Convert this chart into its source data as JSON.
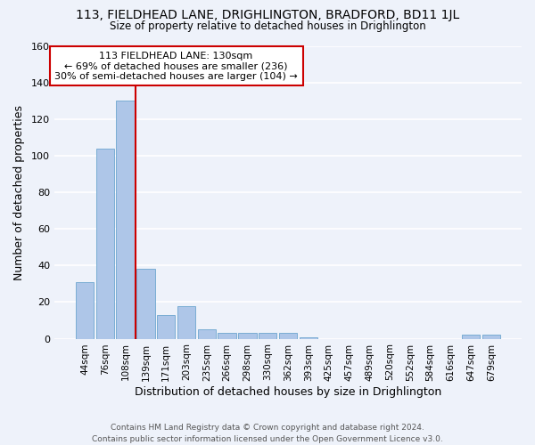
{
  "title1": "113, FIELDHEAD LANE, DRIGHLINGTON, BRADFORD, BD11 1JL",
  "title2": "Size of property relative to detached houses in Drighlington",
  "xlabel": "Distribution of detached houses by size in Drighlington",
  "ylabel": "Number of detached properties",
  "bar_labels": [
    "44sqm",
    "76sqm",
    "108sqm",
    "139sqm",
    "171sqm",
    "203sqm",
    "235sqm",
    "266sqm",
    "298sqm",
    "330sqm",
    "362sqm",
    "393sqm",
    "425sqm",
    "457sqm",
    "489sqm",
    "520sqm",
    "552sqm",
    "584sqm",
    "616sqm",
    "647sqm",
    "679sqm"
  ],
  "bar_values": [
    31,
    104,
    130,
    38,
    13,
    18,
    5,
    3,
    3,
    3,
    3,
    1,
    0,
    0,
    0,
    0,
    0,
    0,
    0,
    2,
    2
  ],
  "bar_color": "#aec6e8",
  "bar_edge_color": "#7aadd4",
  "bar_linewidth": 0.7,
  "background_color": "#eef2fa",
  "grid_color": "#ffffff",
  "vline_x": 2.5,
  "vline_color": "#cc0000",
  "annotation_text": "113 FIELDHEAD LANE: 130sqm\n← 69% of detached houses are smaller (236)\n30% of semi-detached houses are larger (104) →",
  "annotation_box_color": "#ffffff",
  "annotation_box_edge": "#cc0000",
  "ylim": [
    0,
    160
  ],
  "yticks": [
    0,
    20,
    40,
    60,
    80,
    100,
    120,
    140,
    160
  ],
  "footer": "Contains HM Land Registry data © Crown copyright and database right 2024.\nContains public sector information licensed under the Open Government Licence v3.0."
}
